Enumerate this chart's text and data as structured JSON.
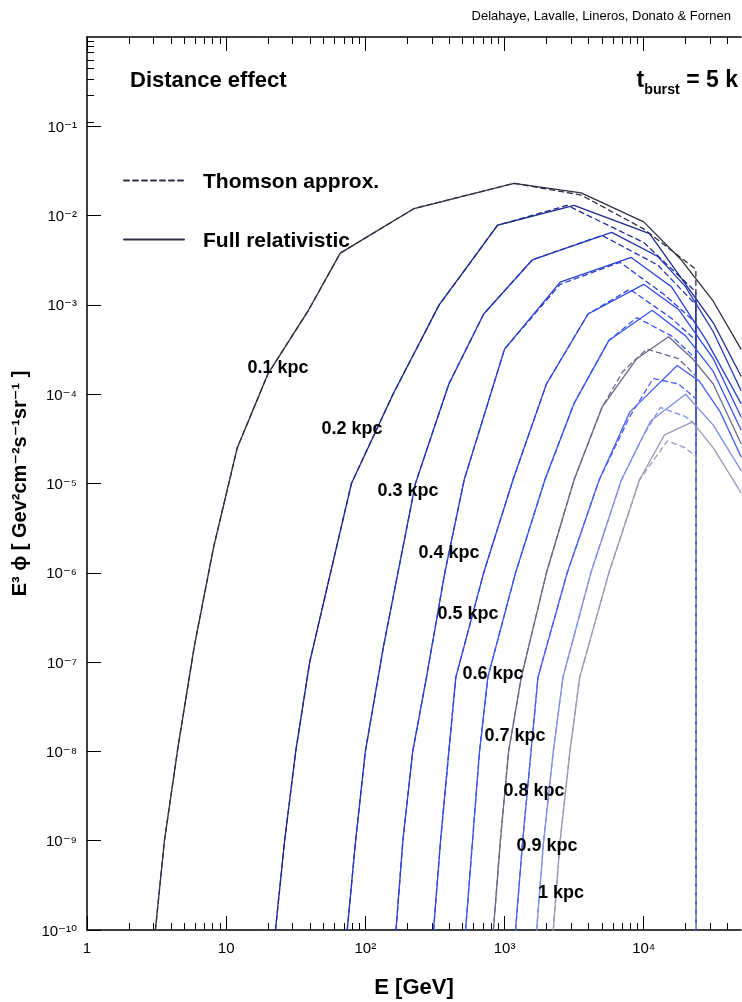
{
  "chart_data": {
    "type": "line",
    "title": "Delahaye, Lavalle, Lineros, Donato & Fornen",
    "xlabel": "E [GeV]",
    "ylabel": "E³ ϕ [ Gev²cm⁻²s⁻¹sr⁻¹ ]",
    "log": "xy",
    "grid": false,
    "legend": "top left",
    "marker": "none",
    "xlim": [
      1,
      50000
    ],
    "xticks": [
      1,
      10,
      {
        "value": 100,
        "label": "10²"
      },
      {
        "value": 1000,
        "label": "10³"
      },
      {
        "value": 10000,
        "label": "10⁴"
      }
    ],
    "ylim": [
      1e-10,
      1
    ],
    "yticks": [
      {
        "value": 1e-10,
        "label": "10⁻¹⁰"
      },
      {
        "value": 1e-09,
        "label": "10⁻⁹"
      },
      {
        "value": 1e-08,
        "label": "10⁻⁸"
      },
      {
        "value": 1e-07,
        "label": "10⁻⁷"
      },
      {
        "value": 1e-06,
        "label": "10⁻⁶"
      },
      {
        "value": 1e-05,
        "label": "10⁻⁵"
      },
      {
        "value": 0.0001,
        "label": "10⁻⁴"
      },
      {
        "value": 0.001,
        "label": "10⁻³"
      },
      {
        "value": 0.01,
        "label": "10⁻²"
      },
      {
        "value": 0.1,
        "label": "10⁻¹"
      }
    ],
    "annotations": [
      "Distance effect",
      "t$_{burst}$ = 5 k",
      "0.1 kpc",
      "0.2 kpc",
      "0.3 kpc",
      "0.4 kpc",
      "0.5 kpc",
      "0.6 kpc",
      "0.7 kpc",
      "0.8 kpc",
      "0.9 kpc",
      "1 kpc"
    ],
    "series": [
      {
        "name": "Thomson approx.",
        "color": "#303040",
        "line_style": "dashed",
        "x": [
          3.1,
          3.6,
          4.5,
          5.9,
          8.1,
          12,
          20,
          39,
          66,
          224,
          1170,
          3550,
          10000,
          23700,
          23700
        ],
        "values": [
          1e-10,
          1e-09,
          1.1e-08,
          1.5e-07,
          1.9e-06,
          2.5e-05,
          0.00017,
          0.00087,
          0.0038,
          0.012,
          0.023,
          0.017,
          0.0071,
          0.0025,
          1e-10
        ]
      },
      {
        "color": "#1e2a8c",
        "line_style": "dashed",
        "x": [
          22.6,
          26.3,
          31.6,
          39.8,
          56.2,
          79.4,
          158,
          339,
          891,
          2820,
          10000,
          23700,
          23700
        ],
        "values": [
          1e-10,
          1e-09,
          1e-08,
          1e-07,
          1e-06,
          1e-05,
          0.0001,
          0.001,
          0.0078,
          0.013,
          0.005,
          0.0014,
          1e-10
        ]
      },
      {
        "color": "#2435b5",
        "line_style": "dashed",
        "x": [
          74.1,
          85.1,
          100,
          135,
          229,
          398,
          708,
          1585,
          5010,
          12600,
          23700,
          23700
        ],
        "values": [
          1e-10,
          1e-09,
          1e-08,
          1.5e-07,
          1e-05,
          0.00013,
          0.00079,
          0.0032,
          0.006,
          0.0028,
          0.001,
          1e-10
        ]
      },
      {
        "color": "#2a40d0",
        "line_style": "dashed",
        "x": [
          166,
          186,
          219,
          275,
          372,
          513,
          1000,
          2510,
          6760,
          14100,
          23700,
          23700
        ],
        "values": [
          1e-10,
          1e-09,
          1e-08,
          6.8e-08,
          1e-06,
          1.1e-05,
          0.00032,
          0.0017,
          0.003,
          0.0013,
          0.00063,
          1e-10
        ]
      },
      {
        "color": "#3048e0",
        "line_style": "dashed",
        "x": [
          309,
          347,
          398,
          447,
          708,
          1150,
          2000,
          3980,
          7940,
          15800,
          23700,
          23700
        ],
        "values": [
          1e-10,
          1e-09,
          1e-08,
          6.8e-08,
          1e-06,
          1.1e-05,
          0.00013,
          0.00079,
          0.0015,
          0.00071,
          0.0004,
          1e-10
        ]
      },
      {
        "color": "#3a55f0",
        "line_style": "dashed",
        "x": [
          525,
          589,
          661,
          759,
          1200,
          1950,
          3160,
          5620,
          8910,
          15800,
          23700,
          23700
        ],
        "values": [
          1e-10,
          1e-09,
          1e-08,
          6.8e-08,
          1e-06,
          1.1e-05,
          7.9e-05,
          0.0004,
          0.00072,
          0.00045,
          0.00025,
          1e-10
        ]
      },
      {
        "color": "#6a6a88",
        "line_style": "dashed",
        "x": [
          832,
          933,
          1070,
          1320,
          2000,
          3160,
          5010,
          7080,
          10500,
          17800,
          23700,
          23700
        ],
        "values": [
          1e-10,
          1e-09,
          1e-08,
          6.8e-08,
          1e-06,
          1.1e-05,
          7.1e-05,
          0.00018,
          0.00032,
          0.00025,
          0.00016,
          1e-10
        ]
      },
      {
        "color": "#4a60f0",
        "line_style": "dashed",
        "x": [
          1200,
          1350,
          1550,
          1740,
          2820,
          4790,
          7940,
          11700,
          17800,
          23700,
          23700
        ],
        "values": [
          1e-10,
          1e-09,
          1e-08,
          6.8e-08,
          1e-06,
          1.1e-05,
          5.6e-05,
          0.00015,
          0.00013,
          8.9e-05,
          1e-10
        ]
      },
      {
        "color": "#8090e8",
        "line_style": "dashed",
        "x": [
          1700,
          1910,
          2240,
          2630,
          4170,
          6920,
          10000,
          13200,
          20000,
          23700,
          23700
        ],
        "values": [
          1e-10,
          1e-09,
          1e-08,
          6.8e-08,
          1e-06,
          1.1e-05,
          3.5e-05,
          7.1e-05,
          5.6e-05,
          4.5e-05,
          1e-10
        ]
      },
      {
        "color": "#9a9ab8",
        "line_style": "dashed",
        "x": [
          2240,
          2510,
          2950,
          3470,
          5620,
          9330,
          14800,
          20000,
          23700,
          23700
        ],
        "values": [
          1e-10,
          1e-09,
          1e-08,
          6.8e-08,
          1e-06,
          1.1e-05,
          3e-05,
          2.5e-05,
          2e-05,
          1e-10
        ]
      },
      {
        "name": "Full relativistic",
        "color": "#303040",
        "line_style": "solid",
        "x": [
          3.1,
          3.6,
          4.5,
          5.9,
          8.1,
          12,
          20,
          39,
          66,
          224,
          1170,
          3550,
          10000,
          18600,
          31600,
          50000
        ],
        "values": [
          1e-10,
          1e-09,
          1.1e-08,
          1.5e-07,
          1.9e-06,
          2.5e-05,
          0.00017,
          0.00087,
          0.0038,
          0.012,
          0.023,
          0.018,
          0.0085,
          0.0032,
          0.0011,
          0.00032
        ]
      },
      {
        "color": "#1e2a8c",
        "line_style": "solid",
        "x": [
          22.6,
          26.3,
          31.6,
          39.8,
          56.2,
          79.4,
          158,
          339,
          891,
          3160,
          11000,
          18600,
          31600,
          50000
        ],
        "values": [
          1e-10,
          1e-09,
          1e-08,
          1e-07,
          1e-06,
          1e-05,
          0.0001,
          0.001,
          0.0078,
          0.013,
          0.0063,
          0.002,
          0.00063,
          0.00016
        ]
      },
      {
        "color": "#2435b5",
        "line_style": "solid",
        "x": [
          74.1,
          85.1,
          100,
          135,
          229,
          398,
          708,
          1585,
          5890,
          12600,
          19950,
          31600,
          50000
        ],
        "values": [
          1e-10,
          1e-09,
          1e-08,
          1.5e-07,
          1e-05,
          0.00013,
          0.00079,
          0.0032,
          0.0065,
          0.0035,
          0.0016,
          0.0005,
          0.00011
        ]
      },
      {
        "color": "#2a40d0",
        "line_style": "solid",
        "x": [
          166,
          186,
          219,
          275,
          372,
          513,
          1000,
          2510,
          8130,
          15800,
          28200,
          50000
        ],
        "values": [
          1e-10,
          1e-09,
          1e-08,
          6.8e-08,
          1e-06,
          1.1e-05,
          0.00032,
          0.0018,
          0.0034,
          0.0016,
          0.0004,
          7.9e-05
        ]
      },
      {
        "color": "#3048e0",
        "line_style": "solid",
        "x": [
          309,
          347,
          398,
          447,
          708,
          1150,
          2000,
          3980,
          10000,
          17800,
          31600,
          50000
        ],
        "values": [
          1e-10,
          1e-09,
          1e-08,
          6.8e-08,
          1e-06,
          1.1e-05,
          0.00013,
          0.00079,
          0.0017,
          0.00089,
          0.00025,
          5.6e-05
        ]
      },
      {
        "color": "#3a55f0",
        "line_style": "solid",
        "x": [
          525,
          589,
          661,
          759,
          1200,
          1950,
          3160,
          5620,
          11500,
          20000,
          31600,
          50000
        ],
        "values": [
          1e-10,
          1e-09,
          1e-08,
          6.8e-08,
          1e-06,
          1.1e-05,
          7.9e-05,
          0.0004,
          0.00087,
          0.00045,
          0.00018,
          4e-05
        ]
      },
      {
        "color": "#6a6a88",
        "line_style": "solid",
        "x": [
          832,
          933,
          1070,
          1320,
          2000,
          3160,
          5010,
          8910,
          15100,
          22400,
          31600,
          50000
        ],
        "values": [
          1e-10,
          1e-09,
          1e-08,
          6.8e-08,
          1e-06,
          1.1e-05,
          7.1e-05,
          0.00025,
          0.00044,
          0.00025,
          0.00013,
          2.8e-05
        ]
      },
      {
        "color": "#4a60f0",
        "line_style": "solid",
        "x": [
          1200,
          1350,
          1550,
          1740,
          2820,
          4790,
          7940,
          17400,
          25100,
          35500,
          50000
        ],
        "values": [
          1e-10,
          1e-09,
          1e-08,
          6.8e-08,
          1e-06,
          1.1e-05,
          6.3e-05,
          0.00021,
          0.00014,
          6.3e-05,
          2e-05
        ]
      },
      {
        "color": "#8090e8",
        "line_style": "solid",
        "x": [
          1700,
          1910,
          2240,
          2630,
          4170,
          6920,
          11200,
          20000,
          31600,
          50000
        ],
        "values": [
          1e-10,
          1e-09,
          1e-08,
          6.8e-08,
          1e-06,
          1.1e-05,
          5e-05,
          0.0001,
          4.5e-05,
          1.4e-05
        ]
      },
      {
        "color": "#9a9ab8",
        "line_style": "solid",
        "x": [
          2240,
          2510,
          2950,
          3470,
          5620,
          9330,
          14100,
          22400,
          31600,
          50000
        ],
        "values": [
          1e-10,
          1e-09,
          1e-08,
          6.8e-08,
          1e-06,
          1.1e-05,
          3.5e-05,
          4.9e-05,
          2.5e-05,
          7.9e-06
        ]
      }
    ]
  }
}
